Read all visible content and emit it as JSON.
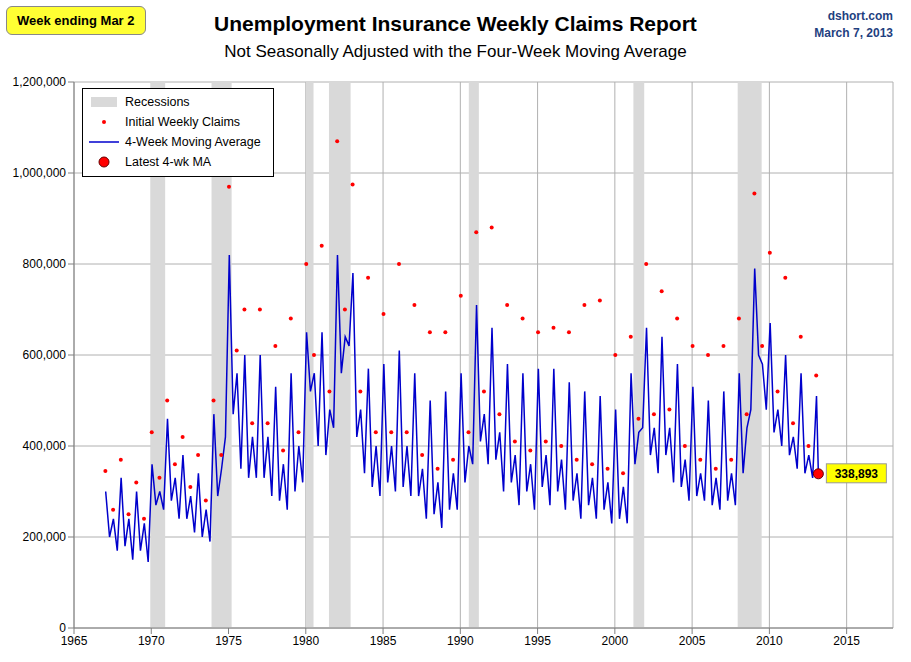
{
  "chart_data": {
    "type": "line",
    "title": "Unemployment Insurance Weekly Claims Report",
    "subtitle": "Not Seasonally Adjusted with the Four-Week Moving Average",
    "annotations": [
      "Week ending Mar 2",
      "dshort.com",
      "March 7, 2013"
    ],
    "xlim": [
      1965,
      2018
    ],
    "xticks": [
      1965,
      1970,
      1975,
      1980,
      1985,
      1990,
      1995,
      2000,
      2005,
      2010,
      2015
    ],
    "ylim": [
      0,
      1200000
    ],
    "yticks": [
      0,
      {
        "value": 200000,
        "label": "200,000"
      },
      {
        "value": 400000,
        "label": "400,000"
      },
      {
        "value": 600000,
        "label": "600,000"
      },
      {
        "value": 800000,
        "label": "800,000"
      },
      {
        "value": 1000000,
        "label": "1,000,000"
      },
      {
        "value": 1200000,
        "label": "1,200,000"
      }
    ],
    "grid": true,
    "legend": "upper left",
    "recessions": {
      "name": "Recessions",
      "color": "#d9d9d9",
      "ranges": [
        [
          1969.95,
          1970.9
        ],
        [
          1973.9,
          1975.2
        ],
        [
          1980.0,
          1980.5
        ],
        [
          1981.5,
          1982.9
        ],
        [
          1990.55,
          1991.2
        ],
        [
          2001.2,
          2001.9
        ],
        [
          2007.95,
          2009.5
        ]
      ]
    },
    "series": [
      {
        "name": "Initial Weekly Claims",
        "type": "scatter",
        "marker": "circle",
        "color": "#ff0000",
        "x": [
          1967.03,
          1967.53,
          1968.03,
          1968.53,
          1969.03,
          1969.53,
          1970.03,
          1970.53,
          1971.03,
          1971.53,
          1972.03,
          1972.53,
          1973.03,
          1973.53,
          1974.03,
          1974.53,
          1975.03,
          1975.53,
          1976.03,
          1976.53,
          1977.03,
          1977.53,
          1978.03,
          1978.53,
          1979.03,
          1979.53,
          1980.03,
          1980.53,
          1981.03,
          1981.53,
          1982.03,
          1982.53,
          1983.03,
          1983.53,
          1984.03,
          1984.53,
          1985.03,
          1985.53,
          1986.03,
          1986.53,
          1987.03,
          1987.53,
          1988.03,
          1988.53,
          1989.03,
          1989.53,
          1990.03,
          1990.53,
          1991.03,
          1991.53,
          1992.03,
          1992.53,
          1993.03,
          1993.53,
          1994.03,
          1994.53,
          1995.03,
          1995.53,
          1996.03,
          1996.53,
          1997.03,
          1997.53,
          1998.03,
          1998.53,
          1999.03,
          1999.53,
          2000.03,
          2000.53,
          2001.03,
          2001.53,
          2002.03,
          2002.53,
          2003.03,
          2003.53,
          2004.03,
          2004.53,
          2005.03,
          2005.53,
          2006.03,
          2006.53,
          2007.03,
          2007.53,
          2008.03,
          2008.53,
          2009.03,
          2009.53,
          2010.03,
          2010.53,
          2011.03,
          2011.53,
          2012.03,
          2012.53,
          2013.03
        ],
        "values": [
          345000,
          260000,
          370000,
          250000,
          320000,
          240000,
          430000,
          330000,
          500000,
          360000,
          420000,
          310000,
          380000,
          280000,
          500000,
          380000,
          970000,
          610000,
          700000,
          450000,
          700000,
          450000,
          620000,
          390000,
          680000,
          430000,
          800000,
          600000,
          840000,
          520000,
          1070000,
          700000,
          975000,
          520000,
          770000,
          430000,
          690000,
          430000,
          800000,
          430000,
          710000,
          380000,
          650000,
          350000,
          650000,
          370000,
          730000,
          430000,
          870000,
          520000,
          880000,
          470000,
          710000,
          410000,
          680000,
          390000,
          650000,
          410000,
          660000,
          400000,
          650000,
          370000,
          710000,
          360000,
          720000,
          350000,
          600000,
          340000,
          640000,
          460000,
          800000,
          470000,
          740000,
          480000,
          680000,
          400000,
          620000,
          370000,
          600000,
          350000,
          620000,
          370000,
          680000,
          470000,
          955000,
          620000,
          825000,
          520000,
          770000,
          450000,
          640000,
          400000,
          555000
        ]
      },
      {
        "name": "4-Week Moving Average",
        "type": "line",
        "color": "#0000cc",
        "x": [
          1967.05,
          1967.3,
          1967.55,
          1967.8,
          1968.05,
          1968.3,
          1968.55,
          1968.8,
          1969.05,
          1969.3,
          1969.55,
          1969.8,
          1970.05,
          1970.3,
          1970.55,
          1970.8,
          1971.05,
          1971.3,
          1971.55,
          1971.8,
          1972.05,
          1972.3,
          1972.55,
          1972.8,
          1973.05,
          1973.3,
          1973.55,
          1973.8,
          1974.05,
          1974.3,
          1974.55,
          1974.8,
          1975.05,
          1975.3,
          1975.55,
          1975.8,
          1976.05,
          1976.3,
          1976.55,
          1976.8,
          1977.05,
          1977.3,
          1977.55,
          1977.8,
          1978.05,
          1978.3,
          1978.55,
          1978.8,
          1979.05,
          1979.3,
          1979.55,
          1979.8,
          1980.05,
          1980.3,
          1980.55,
          1980.8,
          1981.05,
          1981.3,
          1981.55,
          1981.8,
          1982.05,
          1982.3,
          1982.55,
          1982.8,
          1983.05,
          1983.3,
          1983.55,
          1983.8,
          1984.05,
          1984.3,
          1984.55,
          1984.8,
          1985.05,
          1985.3,
          1985.55,
          1985.8,
          1986.05,
          1986.3,
          1986.55,
          1986.8,
          1987.05,
          1987.3,
          1987.55,
          1987.8,
          1988.05,
          1988.3,
          1988.55,
          1988.8,
          1989.05,
          1989.3,
          1989.55,
          1989.8,
          1990.05,
          1990.3,
          1990.55,
          1990.8,
          1991.05,
          1991.3,
          1991.55,
          1991.8,
          1992.05,
          1992.3,
          1992.55,
          1992.8,
          1993.05,
          1993.3,
          1993.55,
          1993.8,
          1994.05,
          1994.3,
          1994.55,
          1994.8,
          1995.05,
          1995.3,
          1995.55,
          1995.8,
          1996.05,
          1996.3,
          1996.55,
          1996.8,
          1997.05,
          1997.3,
          1997.55,
          1997.8,
          1998.05,
          1998.3,
          1998.55,
          1998.8,
          1999.05,
          1999.3,
          1999.55,
          1999.8,
          2000.05,
          2000.3,
          2000.55,
          2000.8,
          2001.05,
          2001.3,
          2001.55,
          2001.8,
          2002.05,
          2002.3,
          2002.55,
          2002.8,
          2003.05,
          2003.3,
          2003.55,
          2003.8,
          2004.05,
          2004.3,
          2004.55,
          2004.8,
          2005.05,
          2005.3,
          2005.55,
          2005.8,
          2006.05,
          2006.3,
          2006.55,
          2006.8,
          2007.05,
          2007.3,
          2007.55,
          2007.8,
          2008.05,
          2008.3,
          2008.55,
          2008.8,
          2009.05,
          2009.3,
          2009.55,
          2009.8,
          2010.05,
          2010.3,
          2010.55,
          2010.8,
          2011.05,
          2011.3,
          2011.55,
          2011.8,
          2012.05,
          2012.3,
          2012.55,
          2012.8,
          2013.05,
          2013.17
        ],
        "values": [
          300000,
          200000,
          240000,
          170000,
          330000,
          180000,
          240000,
          150000,
          300000,
          170000,
          230000,
          145000,
          360000,
          270000,
          300000,
          260000,
          460000,
          280000,
          330000,
          240000,
          380000,
          240000,
          290000,
          210000,
          340000,
          200000,
          260000,
          190000,
          470000,
          290000,
          350000,
          420000,
          820000,
          470000,
          560000,
          350000,
          600000,
          330000,
          420000,
          330000,
          600000,
          330000,
          420000,
          290000,
          530000,
          280000,
          360000,
          260000,
          560000,
          300000,
          400000,
          320000,
          650000,
          520000,
          560000,
          400000,
          650000,
          380000,
          480000,
          440000,
          820000,
          560000,
          640000,
          620000,
          780000,
          420000,
          480000,
          340000,
          570000,
          310000,
          400000,
          290000,
          580000,
          320000,
          400000,
          300000,
          610000,
          310000,
          400000,
          290000,
          560000,
          290000,
          350000,
          240000,
          500000,
          250000,
          320000,
          220000,
          520000,
          260000,
          340000,
          260000,
          560000,
          320000,
          400000,
          360000,
          710000,
          410000,
          470000,
          360000,
          660000,
          370000,
          430000,
          300000,
          580000,
          320000,
          380000,
          270000,
          560000,
          300000,
          360000,
          260000,
          570000,
          310000,
          380000,
          270000,
          570000,
          300000,
          370000,
          260000,
          540000,
          280000,
          340000,
          240000,
          520000,
          270000,
          330000,
          240000,
          510000,
          260000,
          320000,
          230000,
          480000,
          240000,
          310000,
          230000,
          560000,
          360000,
          430000,
          440000,
          660000,
          380000,
          440000,
          340000,
          640000,
          380000,
          440000,
          320000,
          580000,
          310000,
          370000,
          280000,
          530000,
          290000,
          340000,
          280000,
          500000,
          270000,
          330000,
          260000,
          520000,
          280000,
          340000,
          270000,
          560000,
          340000,
          440000,
          480000,
          790000,
          600000,
          580000,
          480000,
          670000,
          430000,
          480000,
          400000,
          600000,
          380000,
          420000,
          350000,
          560000,
          340000,
          380000,
          330000,
          510000,
          338893
        ]
      },
      {
        "name": "Latest 4-wk MA",
        "type": "scatter",
        "marker": "circle",
        "color": "#ff0000",
        "data_labels": true,
        "x": [
          2013.17
        ],
        "values": [
          338893
        ],
        "value_labels": [
          "338,893"
        ]
      }
    ]
  }
}
